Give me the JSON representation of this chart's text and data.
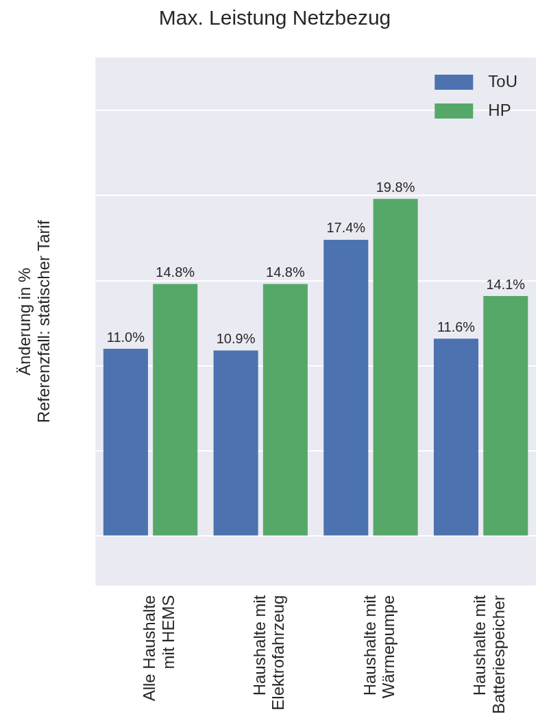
{
  "chart_data": {
    "type": "bar",
    "title": "Max. Leistung Netzbezug",
    "ylabel": "Änderung in %\nReferenzfall: statischer Tarif",
    "categories": [
      "Alle Haushalte\nmit HEMS",
      "Haushalte mit\nElektrofahrzeug",
      "Haushalte mit\nWärmepumpe",
      "Haushalte mit\nBatteriespeicher"
    ],
    "series": [
      {
        "name": "ToU",
        "color": "#4c72b0",
        "values": [
          11.0,
          10.9,
          17.4,
          11.6
        ],
        "value_labels": [
          "11.0%",
          "10.9%",
          "17.4%",
          "11.6%"
        ]
      },
      {
        "name": "HP",
        "color": "#55a868",
        "values": [
          14.8,
          14.8,
          19.8,
          14.1
        ],
        "value_labels": [
          "14.8%",
          "14.8%",
          "19.8%",
          "14.1%"
        ]
      }
    ],
    "ylim": [
      -2.9,
      28.1
    ],
    "yticks": [
      {
        "value": 0,
        "label": null
      },
      {
        "value": 5,
        "label": null
      },
      {
        "value": 10,
        "label": null
      },
      {
        "value": 15,
        "label": null
      },
      {
        "value": 20,
        "label": null
      },
      {
        "value": 25,
        "label": null
      }
    ],
    "tick_labels": "x",
    "grid": "y",
    "legend": "top right"
  }
}
